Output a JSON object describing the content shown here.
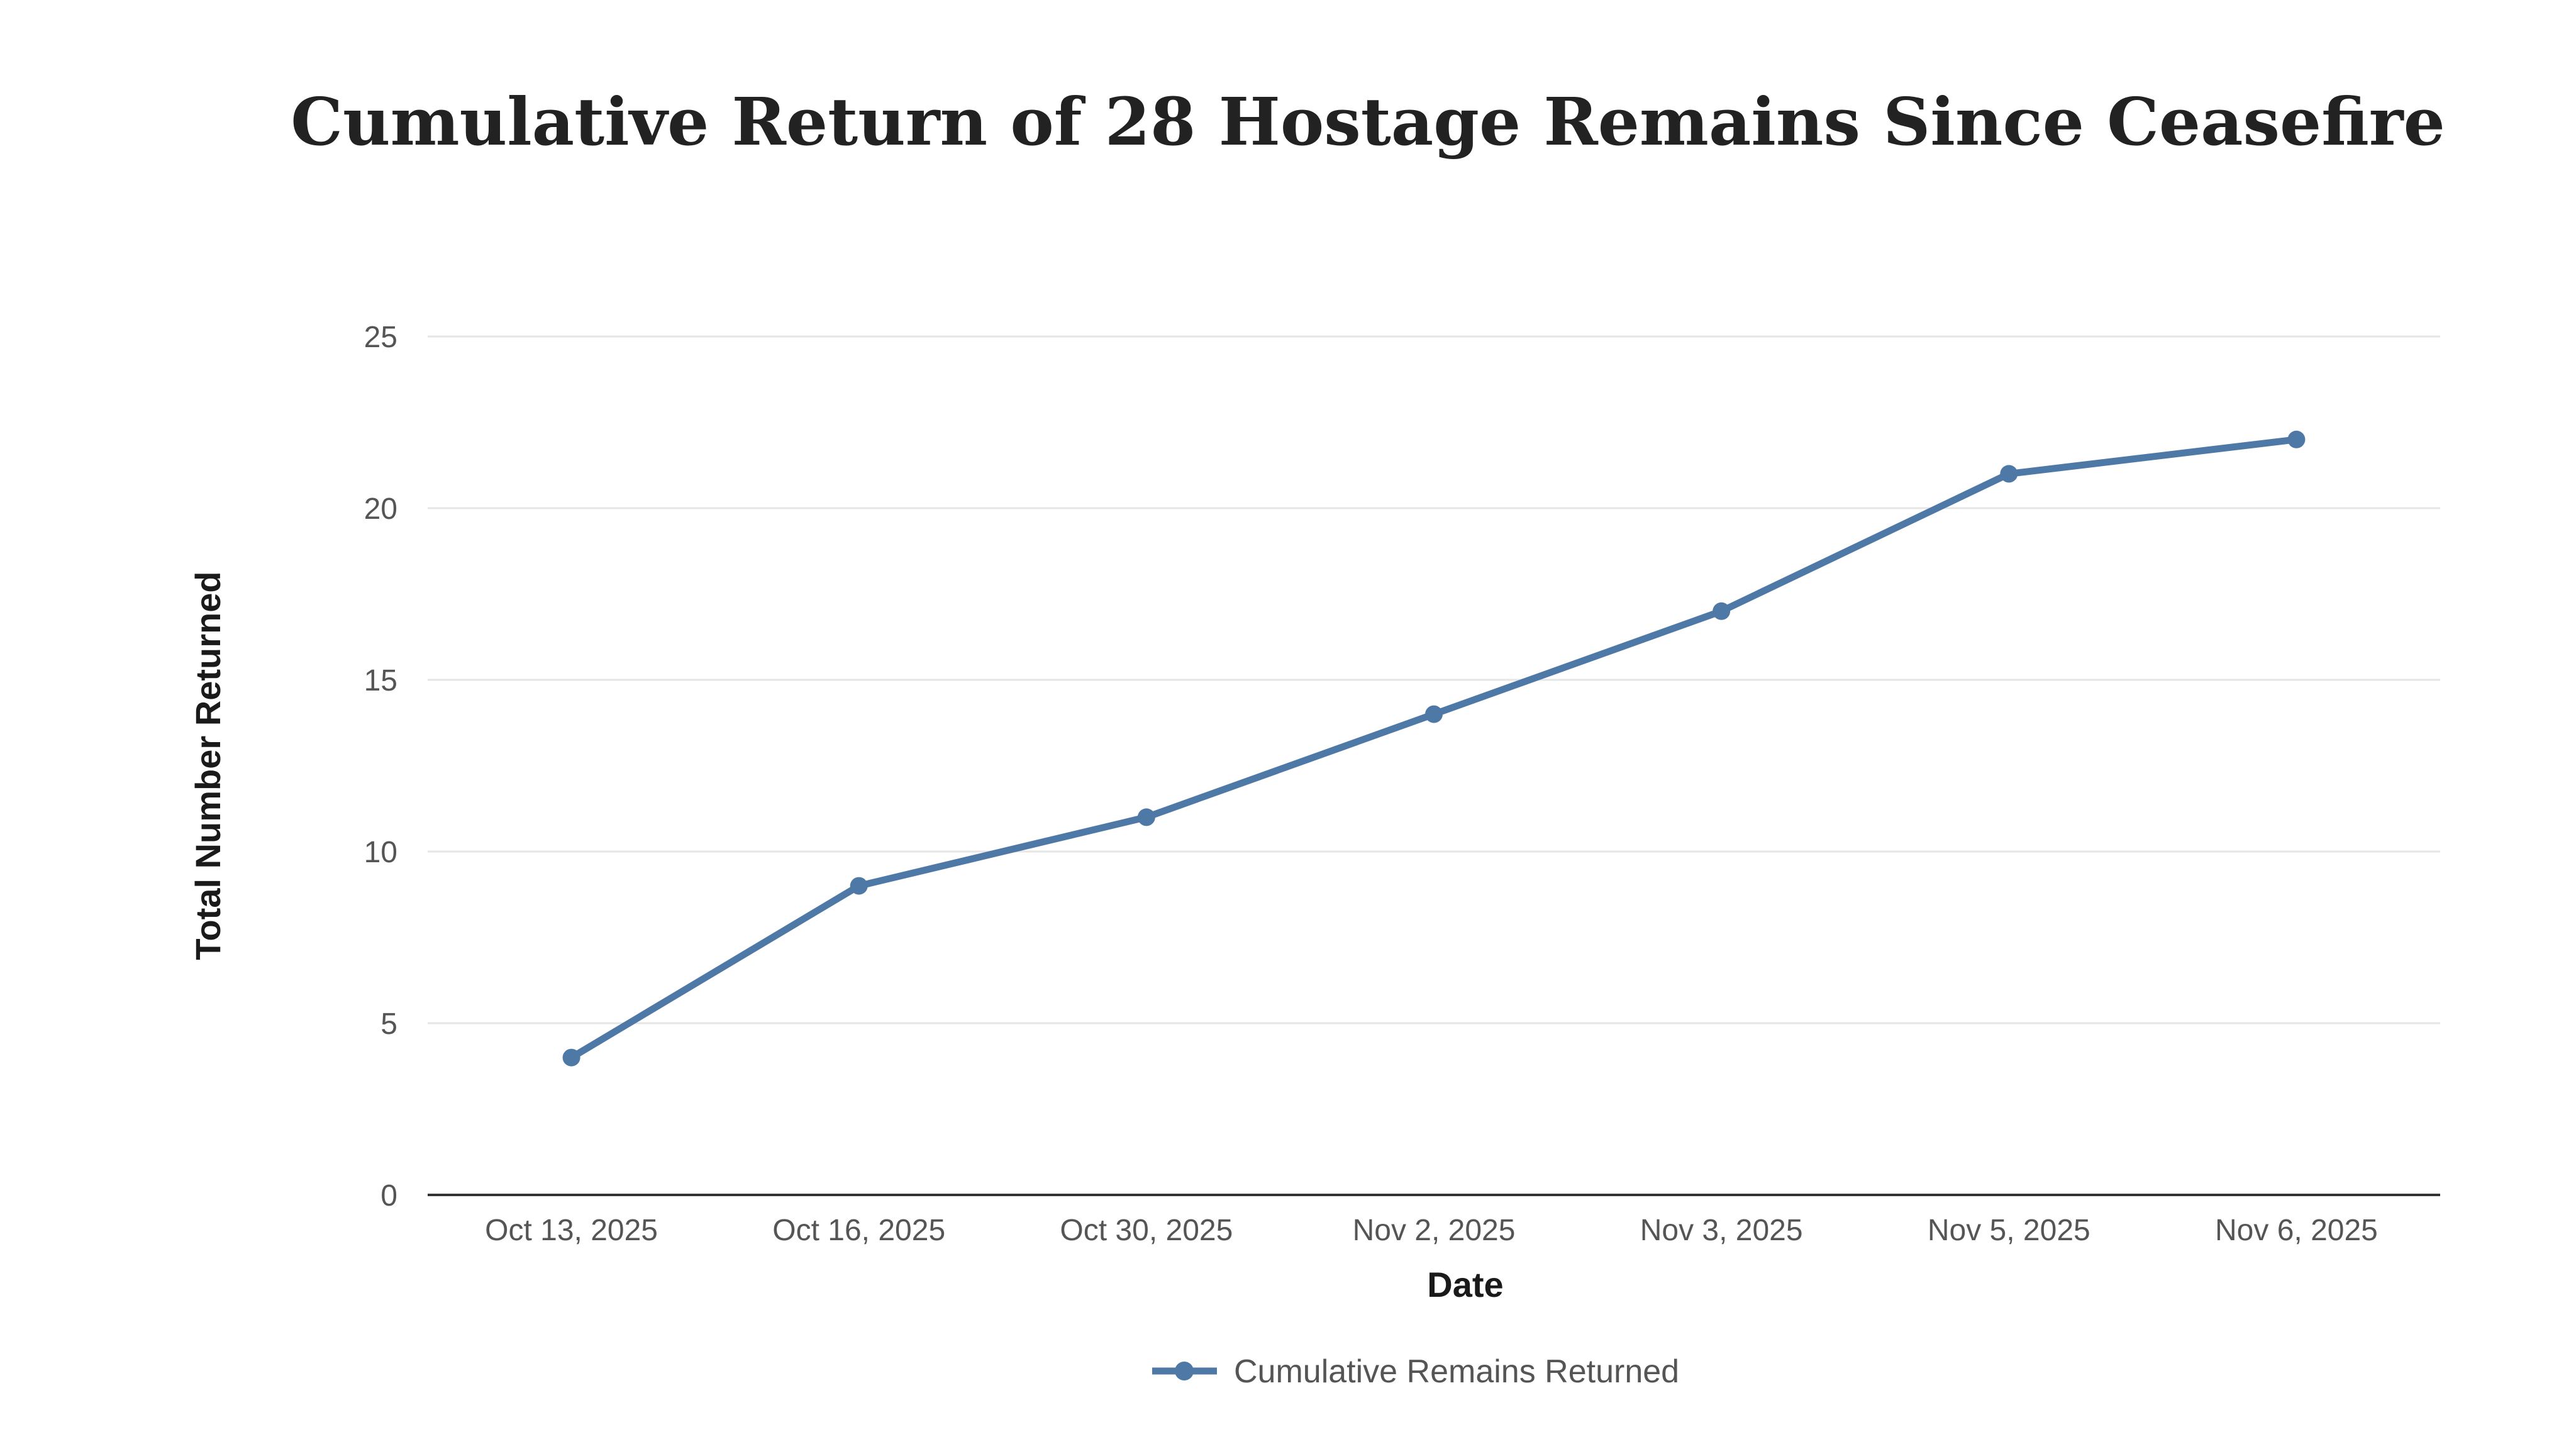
{
  "chart_data": {
    "type": "line",
    "title": "Cumulative Return of 28 Hostage Remains Since Ceasefire",
    "xlabel": "Date",
    "ylabel": "Total Number Returned",
    "categories": [
      "Oct 13, 2025",
      "Oct 16, 2025",
      "Oct 30, 2025",
      "Nov 2, 2025",
      "Nov 3, 2025",
      "Nov 5, 2025",
      "Nov 6, 2025"
    ],
    "series": [
      {
        "name": "Cumulative Remains Returned",
        "values": [
          4,
          9,
          11,
          14,
          17,
          21,
          22
        ],
        "color": "#4e79a7"
      }
    ],
    "ylim": [
      0,
      25
    ],
    "yticks": [
      0,
      5,
      10,
      15,
      20,
      25
    ],
    "grid": true,
    "legend": "bottom-center"
  }
}
